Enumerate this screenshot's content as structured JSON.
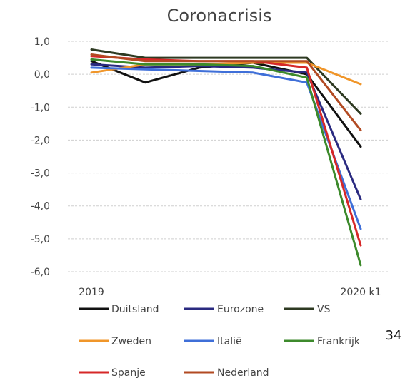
{
  "page_number": "34",
  "chart_data": {
    "type": "line",
    "title": "Coronacrisis",
    "xlabel": "",
    "ylabel": "",
    "x": [
      "2019",
      "",
      "",
      "",
      "",
      "2020 k1"
    ],
    "x_tick_labels": [
      "2019",
      "2020 k1"
    ],
    "y_ticks": [
      "1,0",
      "0,0",
      "-1,0",
      "-2,0",
      "-3,0",
      "-4,0",
      "-5,0",
      "-6,0"
    ],
    "ylim": [
      -6.0,
      1.0
    ],
    "grid": true,
    "legend_position": "bottom",
    "series": [
      {
        "name": "Duitsland",
        "color": "#111111",
        "values": [
          0.4,
          -0.25,
          0.2,
          0.35,
          0.0,
          -2.2
        ]
      },
      {
        "name": "Eurozone",
        "color": "#2a2a80",
        "values": [
          0.3,
          0.2,
          0.25,
          0.2,
          0.05,
          -3.8
        ]
      },
      {
        "name": "VS",
        "color": "#2e3a22",
        "values": [
          0.75,
          0.5,
          0.5,
          0.5,
          0.5,
          -1.2
        ]
      },
      {
        "name": "Zweden",
        "color": "#f0962a",
        "values": [
          0.05,
          0.3,
          0.3,
          0.35,
          0.35,
          -0.3
        ]
      },
      {
        "name": "Italië",
        "color": "#3f6fd8",
        "values": [
          0.2,
          0.15,
          0.1,
          0.05,
          -0.25,
          -4.7
        ]
      },
      {
        "name": "Frankrijk",
        "color": "#3d8a2c",
        "values": [
          0.45,
          0.3,
          0.3,
          0.25,
          -0.1,
          -5.8
        ]
      },
      {
        "name": "Spanje",
        "color": "#d62828",
        "values": [
          0.55,
          0.45,
          0.4,
          0.4,
          0.2,
          -5.2
        ]
      },
      {
        "name": "Nederland",
        "color": "#b24a22",
        "values": [
          0.6,
          0.4,
          0.4,
          0.4,
          0.4,
          -1.7
        ]
      }
    ]
  }
}
